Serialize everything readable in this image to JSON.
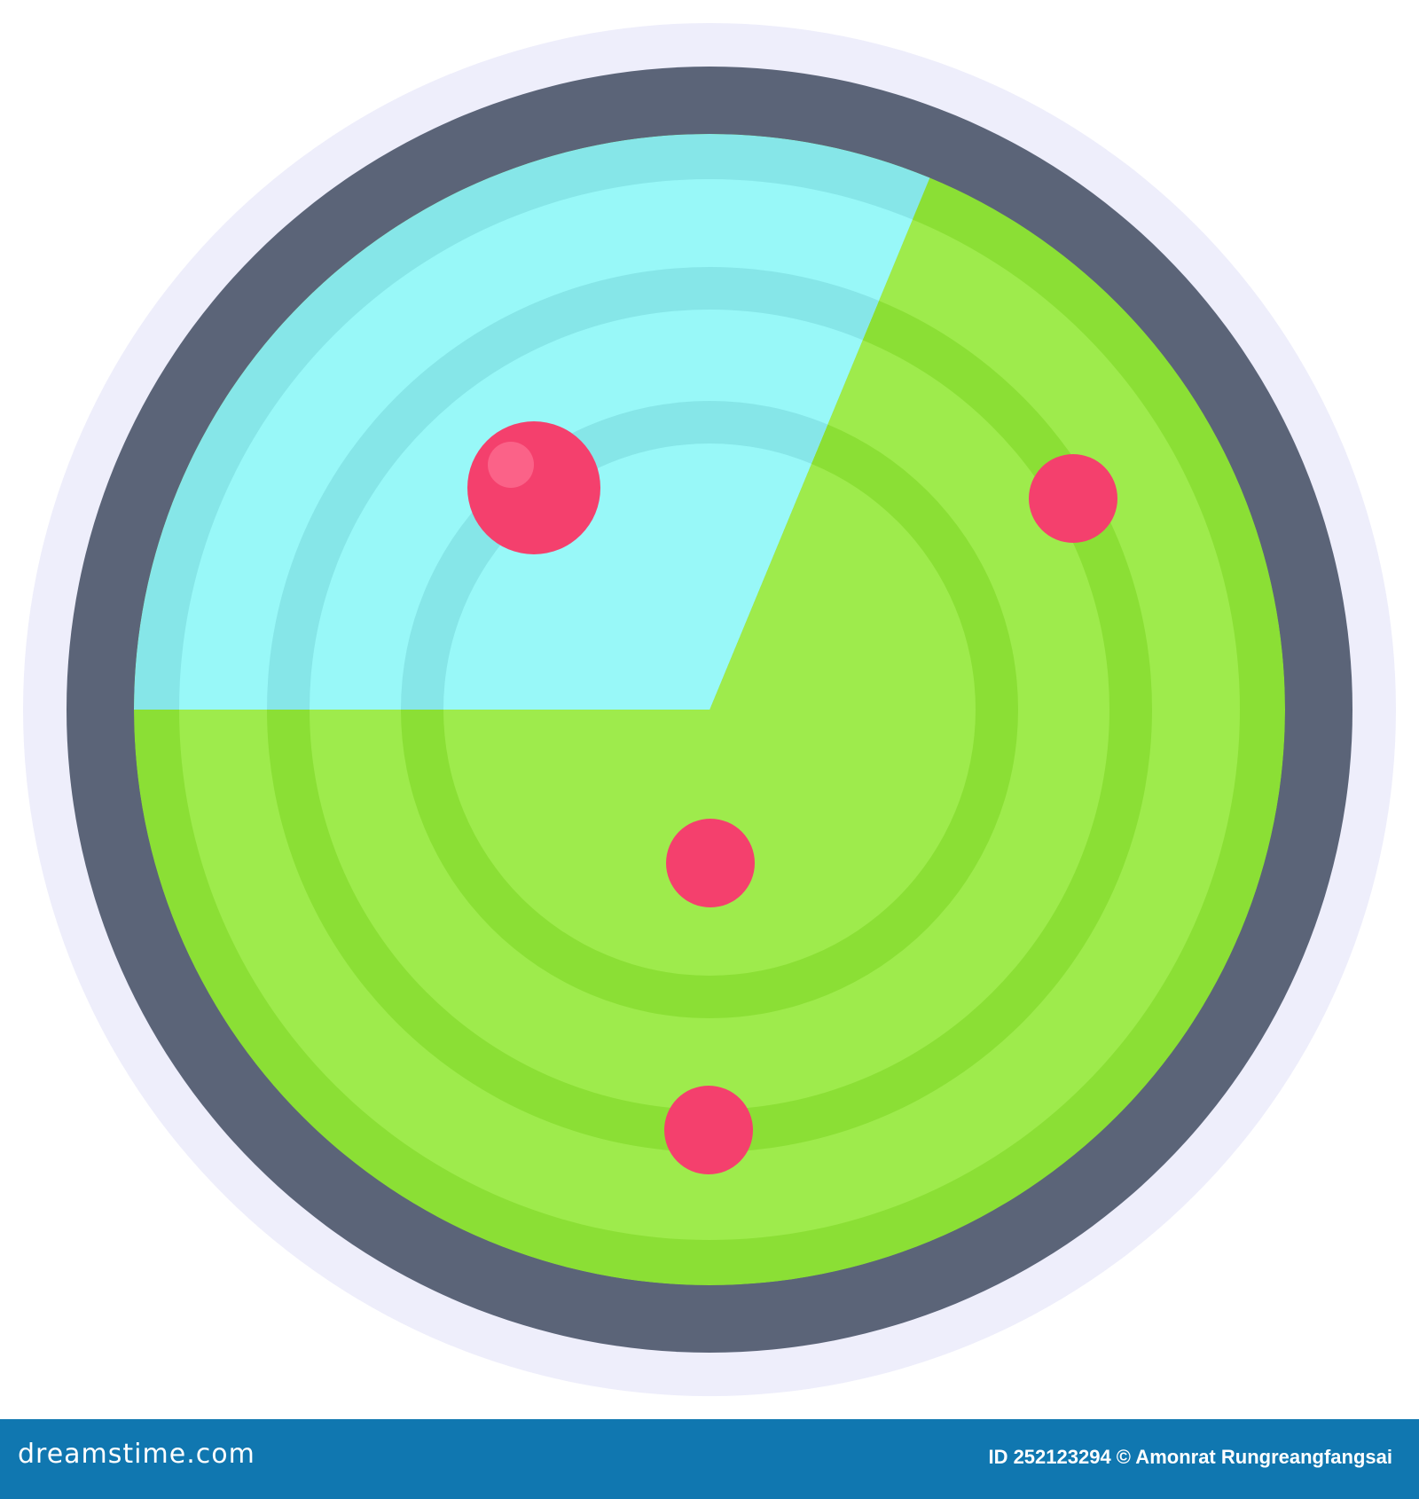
{
  "colors": {
    "halo": "#eeeefb",
    "bezel": "#5b6478",
    "screen_light": "#9eeb4c",
    "screen_dark": "#8bdf35",
    "sweep_light": "#98f8f8",
    "sweep_dark": "#86e6e8",
    "blip": "#f4406d",
    "blip_highlight": "#fb6288",
    "footer": "#1077b0"
  },
  "icon": "radar-icon",
  "blips": 4,
  "footer": {
    "logo": "dreamstime.com",
    "credit": "ID 252123294 © Amonrat Rungreangfangsai"
  }
}
